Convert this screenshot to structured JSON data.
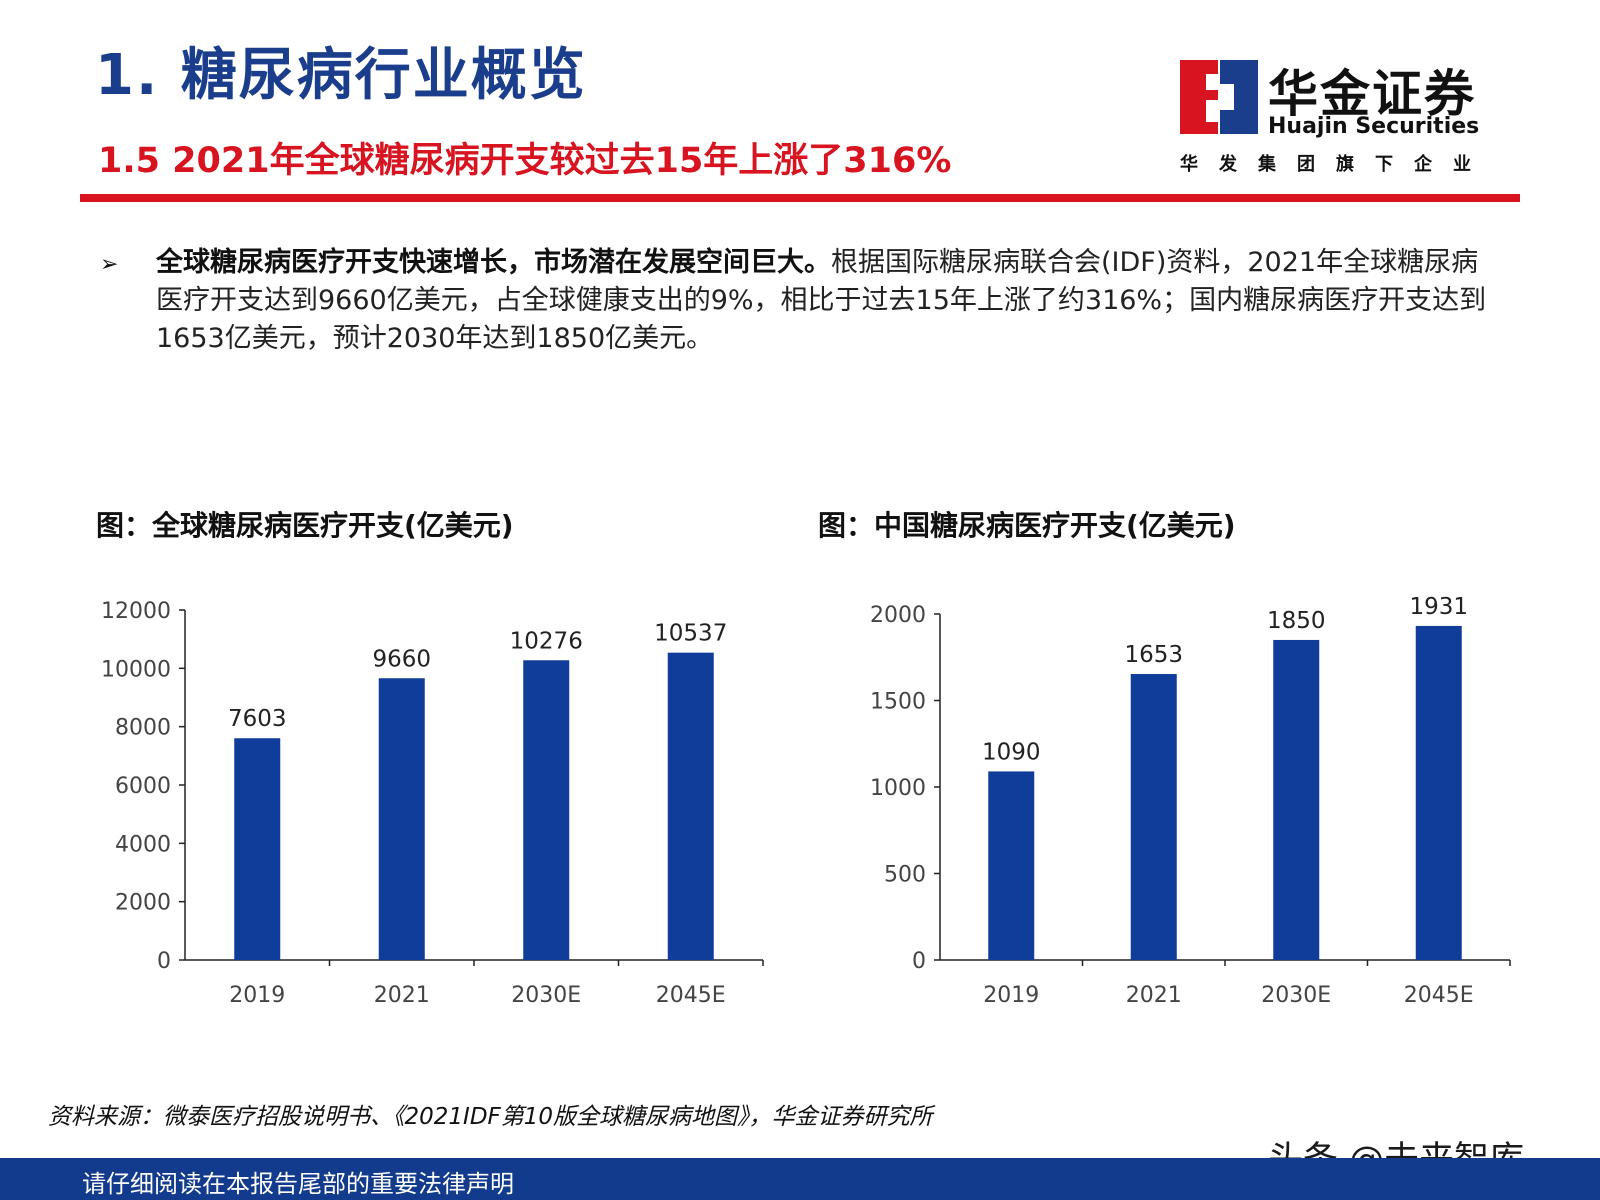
{
  "header": {
    "section_title": "1. 糖尿病行业概览",
    "subsection_title": "1.5 2021年全球糖尿病开支较过去15年上涨了316%"
  },
  "logo": {
    "name_cn": "华金证券",
    "name_en": "Huajin Securities",
    "tagline": "华发集团旗下企业"
  },
  "summary": {
    "bullet": "➢",
    "bold": "全球糖尿病医疗开支快速增长，市场潜在发展空间巨大。",
    "text": "根据国际糖尿病联合会(IDF)资料，2021年全球糖尿病医疗开支达到9660亿美元，占全球健康支出的9%，相比于过去15年上涨了约316%；国内糖尿病医疗开支达到1653亿美元，预计2030年达到1850亿美元。"
  },
  "chart_data": [
    {
      "type": "bar",
      "title": "图：全球糖尿病医疗开支(亿美元)",
      "categories": [
        "2019",
        "2021",
        "2030E",
        "2045E"
      ],
      "values": [
        7603,
        9660,
        10276,
        10537
      ],
      "ylim": [
        0,
        12000
      ],
      "yticks": [
        0,
        2000,
        4000,
        6000,
        8000,
        10000,
        12000
      ],
      "bar_color": "#0f3d99",
      "grid": false
    },
    {
      "type": "bar",
      "title": "图：中国糖尿病医疗开支(亿美元)",
      "categories": [
        "2019",
        "2021",
        "2030E",
        "2045E"
      ],
      "values": [
        1090,
        1653,
        1850,
        1931
      ],
      "ylim": [
        0,
        2000
      ],
      "yticks": [
        0,
        500,
        1000,
        1500,
        2000
      ],
      "bar_color": "#0f3d99",
      "grid": false
    }
  ],
  "source": "资料来源：微泰医疗招股说明书、《2021IDF第10版全球糖尿病地图》，华金证券研究所",
  "watermark": "头条 @未来智库",
  "footer": {
    "disclaimer": "请仔细阅读在本报告尾部的重要法律声明"
  },
  "colors": {
    "title_blue": "#1a3e8c",
    "accent_red": "#d7141f",
    "footer_blue": "#133b8d"
  }
}
